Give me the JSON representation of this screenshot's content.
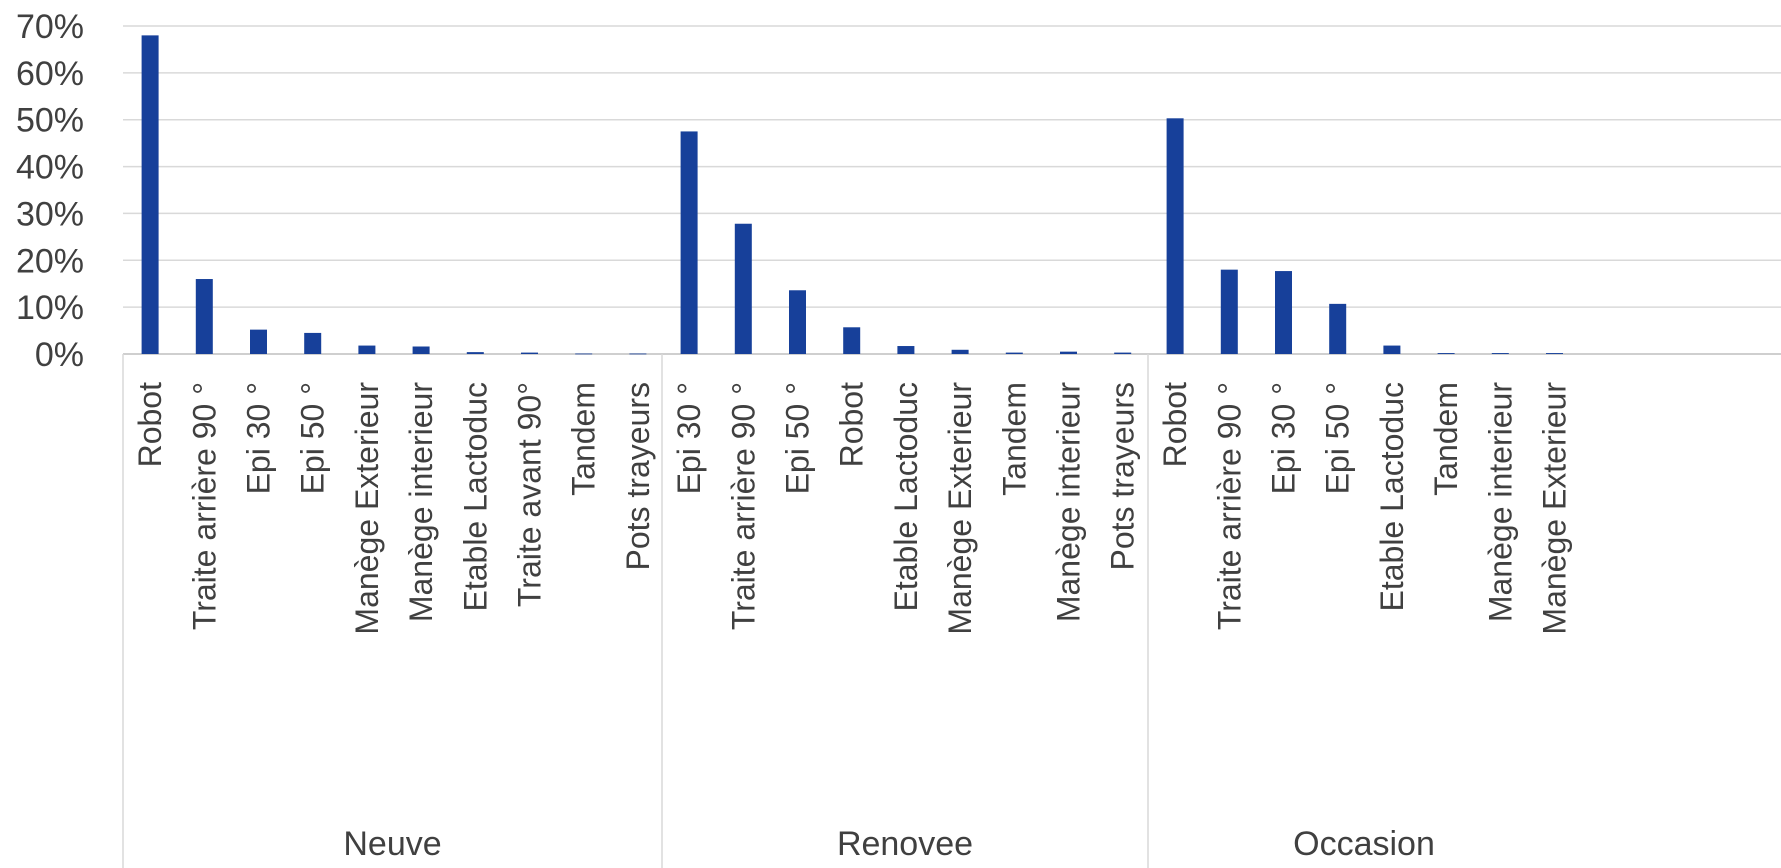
{
  "chart_data": {
    "type": "bar",
    "title": "",
    "xlabel": "",
    "ylabel": "",
    "ylim": [
      0,
      0.7
    ],
    "yticks": [
      "0%",
      "10%",
      "20%",
      "30%",
      "40%",
      "50%",
      "60%",
      "70%"
    ],
    "grid": true,
    "legend": "none",
    "bar_color": "#17409a",
    "groups": [
      {
        "name": "Neuve",
        "categories": [
          "Robot",
          "Traite arrière 90 °",
          "Epi 30 °",
          "Epi 50 °",
          "Manège Exterieur",
          "Manège interieur",
          "Etable Lactoduc",
          "Traite avant 90°",
          "Tandem",
          "Pots trayeurs"
        ],
        "values": [
          0.68,
          0.16,
          0.052,
          0.045,
          0.018,
          0.016,
          0.004,
          0.003,
          0.001,
          0.001
        ]
      },
      {
        "name": "Renovee",
        "categories": [
          "Epi 30 °",
          "Traite arrière 90 °",
          "Epi 50 °",
          "Robot",
          "Etable Lactoduc",
          "Manège Exterieur",
          "Tandem",
          "Manège interieur",
          "Pots trayeurs"
        ],
        "values": [
          0.475,
          0.278,
          0.136,
          0.057,
          0.017,
          0.009,
          0.003,
          0.005,
          0.003
        ]
      },
      {
        "name": "Occasion",
        "categories": [
          "Robot",
          "Traite arrière 90 °",
          "Epi 30 °",
          "Epi 50 °",
          "Etable Lactoduc",
          "Tandem",
          "Manège interieur",
          "Manège Exterieur"
        ],
        "values": [
          0.503,
          0.18,
          0.177,
          0.107,
          0.018,
          0.002,
          0.002,
          0.002
        ]
      }
    ]
  }
}
